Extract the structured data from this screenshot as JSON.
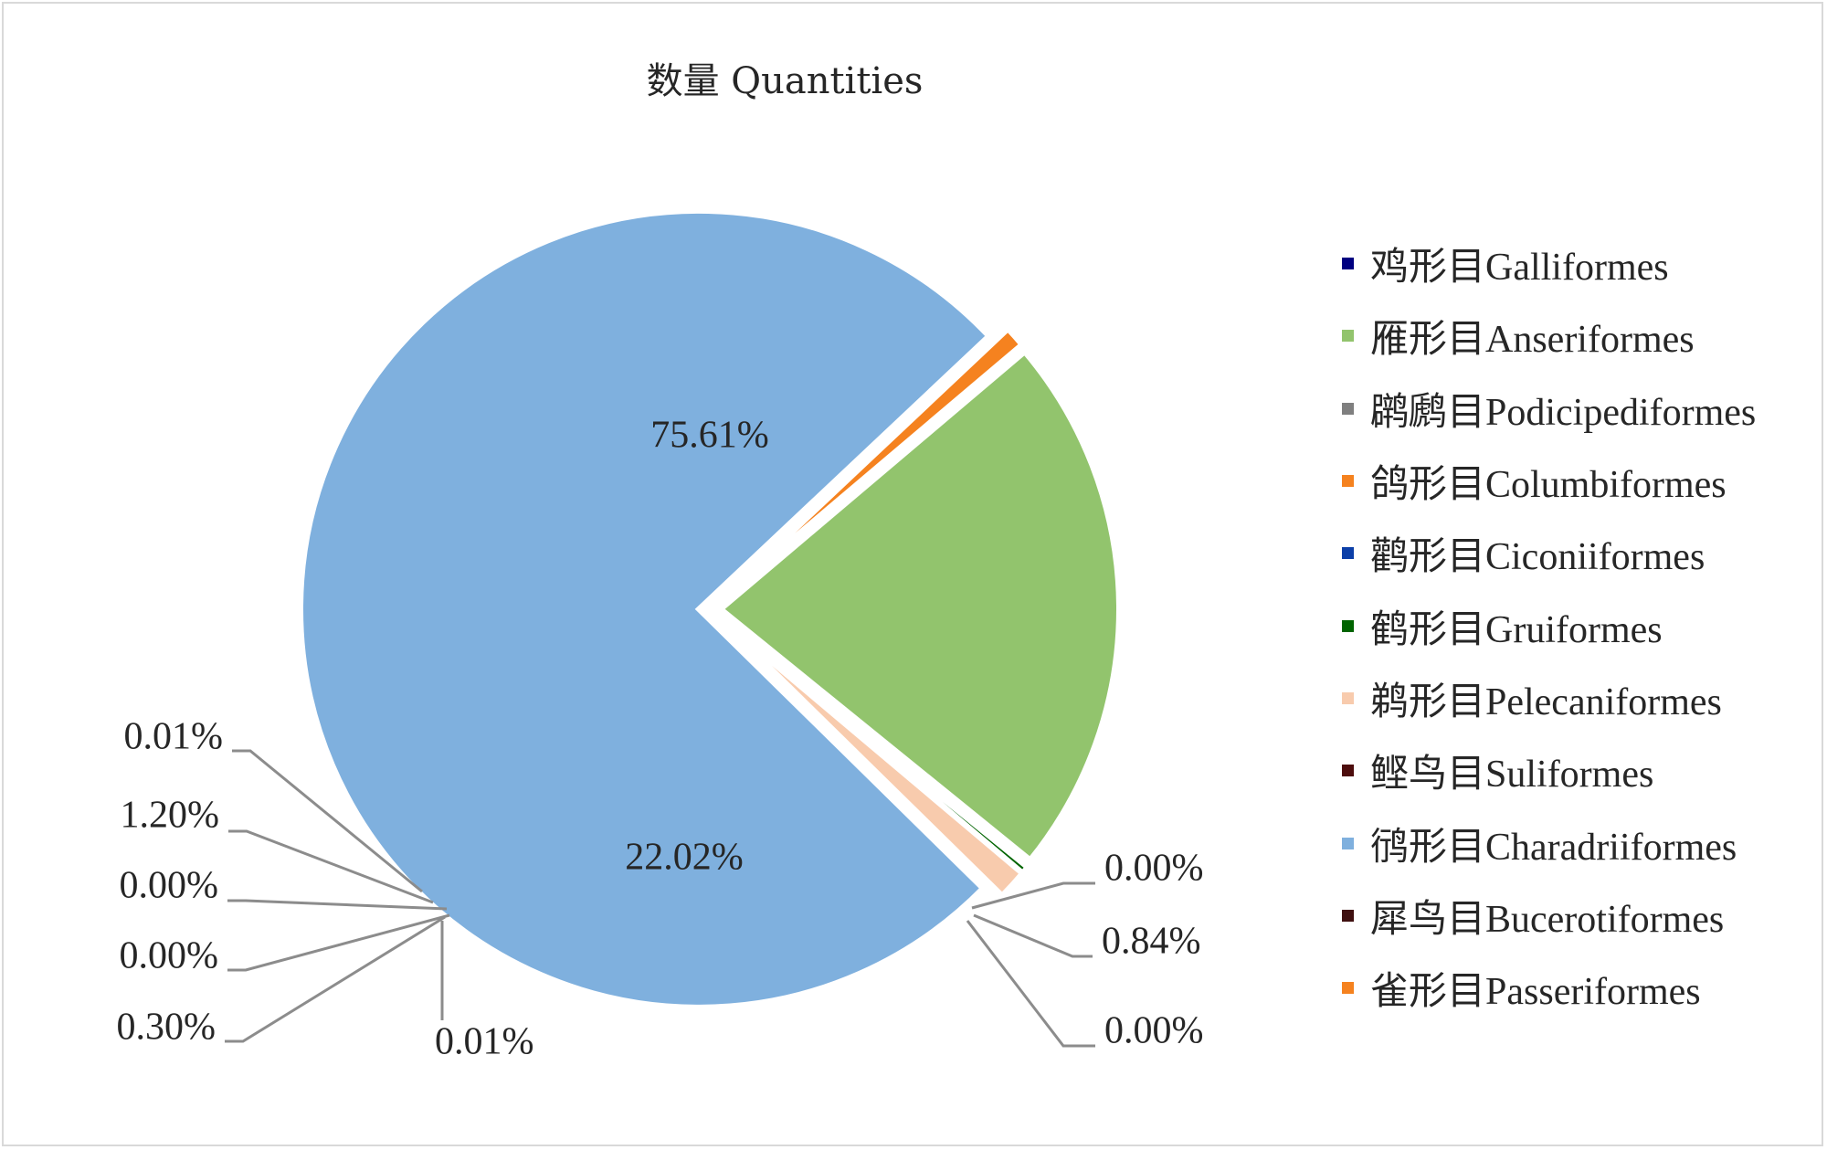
{
  "chart_data": {
    "type": "pie",
    "title": "数量 Quantities",
    "slices": [
      {
        "name": "鸡形目Galliformes",
        "value": 0.0,
        "label": "0.00%",
        "color": "#000080"
      },
      {
        "name": "雁形目Anseriformes",
        "value": 22.02,
        "label": "22.02%",
        "color": "#92c46d"
      },
      {
        "name": "䴙䴘目Podicipediformes",
        "value": 0.01,
        "label": "0.01%",
        "color": "#7f7f7f"
      },
      {
        "name": "鸽形目Columbiformes",
        "value": 0.0,
        "label": "0.00%",
        "color": "#f5821f"
      },
      {
        "name": "鹳形目Ciconiiformes",
        "value": 0.0,
        "label": "0.00%",
        "color": "#0c3fa8"
      },
      {
        "name": "鹤形目Gruiformes",
        "value": 0.3,
        "label": "0.30%",
        "color": "#006400"
      },
      {
        "name": "鹈形目Pelecaniformes",
        "value": 1.2,
        "label": "1.20%",
        "color": "#f8cbad"
      },
      {
        "name": "鲣鸟目Suliformes",
        "value": 0.01,
        "label": "0.01%",
        "color": "#4d0d0d"
      },
      {
        "name": "鸻形目Charadriiformes",
        "value": 75.61,
        "label": "75.61%",
        "color": "#7fb0de"
      },
      {
        "name": "犀鸟目Bucerotiformes",
        "value": 0.0,
        "label": "0.00%",
        "color": "#3f1010"
      },
      {
        "name": "雀形目Passeriformes",
        "value": 0.84,
        "label": "0.84%",
        "color": "#f5821f"
      }
    ],
    "legend_position": "right",
    "labels_outside_small_slices": true
  }
}
